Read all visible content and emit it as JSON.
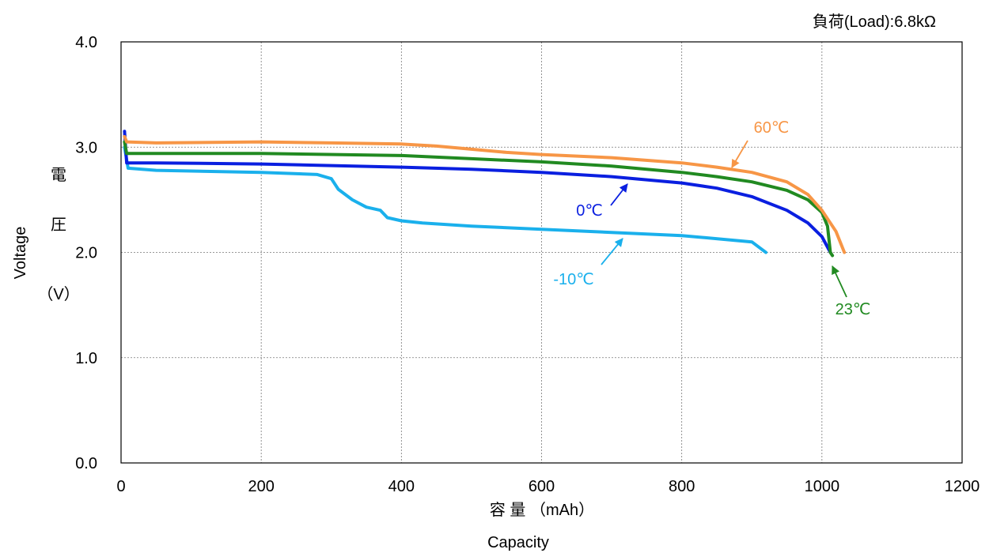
{
  "chart_data": {
    "type": "line",
    "load_note": "負荷(Load):6.8kΩ",
    "xlabel_jp": "容 量 （mAh）",
    "xlabel_en": "Capacity",
    "ylabel_jp_1": "電",
    "ylabel_jp_2": "圧",
    "ylabel_unit": "（V）",
    "ylabel_en": "Voltage",
    "xlim": [
      0,
      1200
    ],
    "ylim": [
      0,
      4
    ],
    "xticks": [
      0,
      200,
      400,
      600,
      800,
      1000,
      1200
    ],
    "xtick_labels": [
      "0",
      "200",
      "400",
      "600",
      "800",
      "1000",
      "1200"
    ],
    "yticks": [
      0,
      1,
      2,
      3,
      4
    ],
    "ytick_labels": [
      "0.0",
      "1.0",
      "2.0",
      "3.0",
      "4.0"
    ],
    "grid": true,
    "series": [
      {
        "name": "60℃",
        "color": "#F79646",
        "points": [
          [
            5,
            3.1
          ],
          [
            8,
            3.05
          ],
          [
            50,
            3.04
          ],
          [
            200,
            3.05
          ],
          [
            300,
            3.04
          ],
          [
            400,
            3.03
          ],
          [
            450,
            3.01
          ],
          [
            500,
            2.98
          ],
          [
            550,
            2.95
          ],
          [
            600,
            2.93
          ],
          [
            700,
            2.9
          ],
          [
            800,
            2.85
          ],
          [
            850,
            2.81
          ],
          [
            900,
            2.76
          ],
          [
            950,
            2.67
          ],
          [
            980,
            2.55
          ],
          [
            1000,
            2.4
          ],
          [
            1020,
            2.2
          ],
          [
            1032,
            2.0
          ]
        ]
      },
      {
        "name": "23℃",
        "color": "#218A21",
        "points": [
          [
            5,
            3.05
          ],
          [
            8,
            2.94
          ],
          [
            50,
            2.94
          ],
          [
            200,
            2.94
          ],
          [
            400,
            2.92
          ],
          [
            500,
            2.89
          ],
          [
            600,
            2.86
          ],
          [
            700,
            2.82
          ],
          [
            800,
            2.76
          ],
          [
            850,
            2.72
          ],
          [
            900,
            2.67
          ],
          [
            950,
            2.59
          ],
          [
            980,
            2.5
          ],
          [
            1000,
            2.38
          ],
          [
            1008,
            2.25
          ],
          [
            1012,
            2.0
          ],
          [
            1015,
            1.97
          ]
        ]
      },
      {
        "name": "0℃",
        "color": "#0A1FE0",
        "points": [
          [
            5,
            3.15
          ],
          [
            8,
            2.85
          ],
          [
            50,
            2.85
          ],
          [
            200,
            2.84
          ],
          [
            400,
            2.81
          ],
          [
            500,
            2.79
          ],
          [
            600,
            2.76
          ],
          [
            700,
            2.72
          ],
          [
            800,
            2.66
          ],
          [
            850,
            2.61
          ],
          [
            900,
            2.53
          ],
          [
            950,
            2.4
          ],
          [
            980,
            2.28
          ],
          [
            1000,
            2.15
          ],
          [
            1012,
            2.0
          ]
        ]
      },
      {
        "name": "-10℃",
        "color": "#1AB0EC",
        "points": [
          [
            5,
            3.0
          ],
          [
            10,
            2.8
          ],
          [
            50,
            2.78
          ],
          [
            200,
            2.76
          ],
          [
            280,
            2.74
          ],
          [
            300,
            2.7
          ],
          [
            310,
            2.6
          ],
          [
            330,
            2.5
          ],
          [
            350,
            2.43
          ],
          [
            370,
            2.4
          ],
          [
            380,
            2.33
          ],
          [
            400,
            2.3
          ],
          [
            430,
            2.28
          ],
          [
            500,
            2.25
          ],
          [
            600,
            2.22
          ],
          [
            700,
            2.19
          ],
          [
            800,
            2.16
          ],
          [
            900,
            2.1
          ],
          [
            910,
            2.05
          ],
          [
            920,
            2.0
          ]
        ]
      }
    ],
    "annotations": [
      {
        "text": "60℃",
        "color": "#F79646"
      },
      {
        "text": "23℃",
        "color": "#218A21"
      },
      {
        "text": "0℃",
        "color": "#0A1FE0"
      },
      {
        "text": "-10℃",
        "color": "#1AB0EC"
      }
    ]
  }
}
